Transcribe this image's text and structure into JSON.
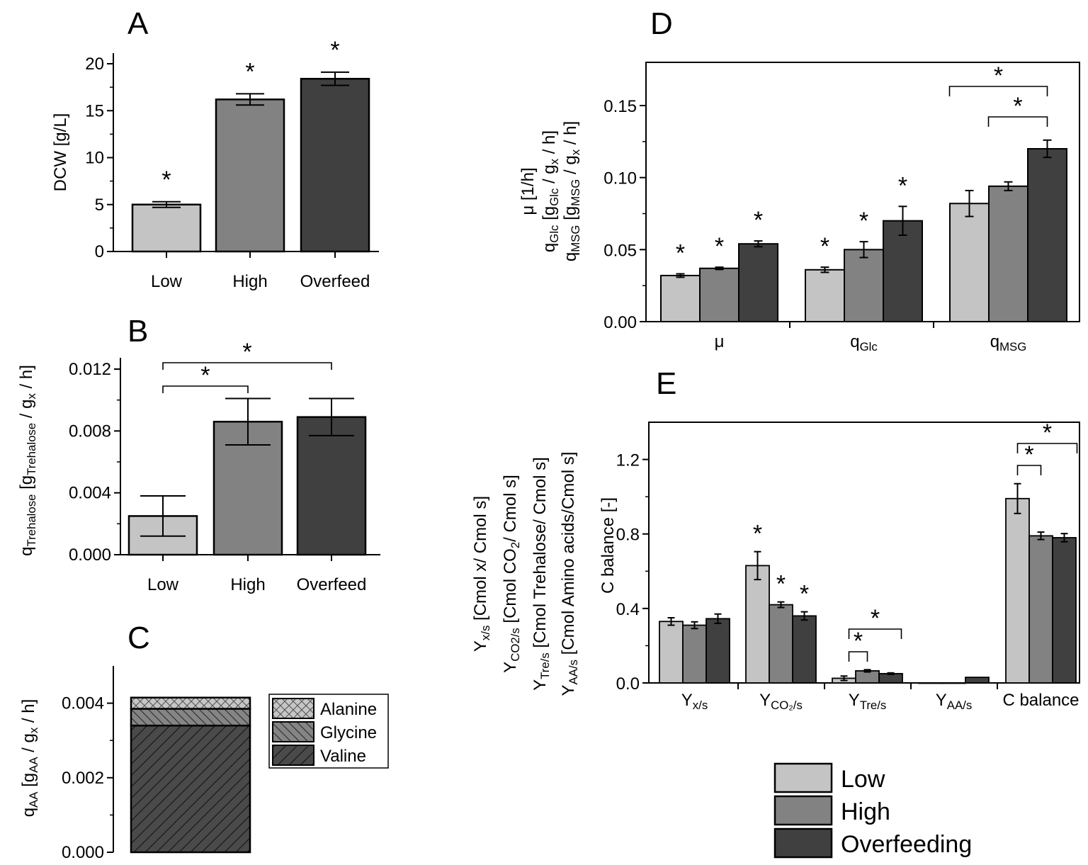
{
  "colors": {
    "low": "#c4c4c4",
    "high": "#828282",
    "over": "#404040"
  },
  "chart_data": [
    {
      "id": "A",
      "type": "bar",
      "panel_label": "A",
      "categories": [
        "Low",
        "High",
        "Overfeed"
      ],
      "values": [
        5.0,
        16.2,
        18.4
      ],
      "errors": [
        0.3,
        0.6,
        0.7
      ],
      "ylabel": "DCW [g/L]",
      "ylim": [
        0,
        20
      ],
      "yticks": [
        0,
        5,
        10,
        15,
        20
      ],
      "ytick_labels": [
        "0",
        "5",
        "10",
        "15",
        "20"
      ],
      "stars": [
        "*",
        "*",
        "*"
      ]
    },
    {
      "id": "B",
      "type": "bar",
      "panel_label": "B",
      "categories": [
        "Low",
        "High",
        "Overfeed"
      ],
      "values": [
        0.0025,
        0.0086,
        0.0089
      ],
      "errors": [
        0.0013,
        0.0015,
        0.0012
      ],
      "ylabel": {
        "main": "q",
        "sub1": "Trehalose",
        "mid1": " [g",
        "sub2": "Trehalose",
        "mid2": " / g",
        "sub3": "x",
        "end": " / h]"
      },
      "ylim": [
        0,
        0.012
      ],
      "yticks": [
        0,
        0.004,
        0.008,
        0.012
      ],
      "ytick_labels": [
        "0.000",
        "0.004",
        "0.008",
        "0.012"
      ],
      "brackets": [
        {
          "from": 0,
          "to": 1,
          "label": "*"
        },
        {
          "from": 0,
          "to": 2,
          "label": "*"
        }
      ]
    },
    {
      "id": "C",
      "type": "bar",
      "stacked": true,
      "panel_label": "C",
      "ylabel": {
        "main": "q",
        "sub1": "AA",
        "mid1": " [g",
        "sub2": "AA",
        "mid2": " / g",
        "sub3": "x",
        "end": " / h]"
      },
      "ylim": [
        0,
        0.005
      ],
      "yticks": [
        0,
        0.002,
        0.004
      ],
      "ytick_labels": [
        "0.000",
        "0.002",
        "0.004"
      ],
      "series": [
        {
          "name": "Valine",
          "value": 0.0034
        },
        {
          "name": "Glycine",
          "value": 0.00045
        },
        {
          "name": "Alanine",
          "value": 0.0003
        }
      ],
      "legend": [
        "Alanine",
        "Glycine",
        "Valine"
      ]
    },
    {
      "id": "D",
      "type": "bar",
      "panel_label": "D",
      "categories": [
        {
          "main": "μ",
          "sub": ""
        },
        {
          "main": "q",
          "sub": "Glc"
        },
        {
          "main": "q",
          "sub": "MSG"
        }
      ],
      "series": [
        {
          "name": "Low",
          "values": [
            0.032,
            0.036,
            0.082
          ],
          "errors": [
            0.0012,
            0.0018,
            0.009
          ]
        },
        {
          "name": "High",
          "values": [
            0.037,
            0.05,
            0.094
          ],
          "errors": [
            0.0008,
            0.0055,
            0.003
          ]
        },
        {
          "name": "Overfeeding",
          "values": [
            0.054,
            0.07,
            0.12
          ],
          "errors": [
            0.002,
            0.01,
            0.006
          ]
        }
      ],
      "ylabel_lines": [
        {
          "main": "μ [1/h]",
          "subs": []
        },
        {
          "parts": [
            [
              "q",
              ""
            ],
            [
              "Glc",
              "sub"
            ],
            [
              " [g",
              ""
            ],
            [
              "Glc",
              "sub"
            ],
            [
              " / g",
              ""
            ],
            [
              "x",
              "sub"
            ],
            [
              " / h]",
              ""
            ]
          ]
        },
        {
          "parts": [
            [
              "q",
              ""
            ],
            [
              "MSG",
              "sub"
            ],
            [
              " [g",
              ""
            ],
            [
              "MSG",
              "sub"
            ],
            [
              " / g",
              ""
            ],
            [
              "x",
              "sub"
            ],
            [
              " / h]",
              ""
            ]
          ]
        }
      ],
      "ylim": [
        0,
        0.18
      ],
      "yticks": [
        0,
        0.05,
        0.1,
        0.15
      ],
      "ytick_labels": [
        "0.00",
        "0.05",
        "0.10",
        "0.15"
      ],
      "stars_groups": [
        0,
        1
      ],
      "brackets": [
        {
          "group": 2,
          "from": 1,
          "to": 2,
          "label": "*"
        },
        {
          "group": 2,
          "from": 0,
          "to": 2,
          "label": "*"
        }
      ]
    },
    {
      "id": "E",
      "type": "bar",
      "panel_label": "E",
      "categories": [
        {
          "main": "Y",
          "sub": "x/s"
        },
        {
          "main": "Y",
          "sub": "CO₂/s"
        },
        {
          "main": "Y",
          "sub": "Tre/s"
        },
        {
          "main": "Y",
          "sub": "AA/s"
        },
        {
          "main": "C balance",
          "sub": ""
        }
      ],
      "series": [
        {
          "name": "Low",
          "values": [
            0.33,
            0.63,
            0.025,
            0.0,
            0.99
          ],
          "errors": [
            0.02,
            0.075,
            0.012,
            0,
            0.08
          ]
        },
        {
          "name": "High",
          "values": [
            0.31,
            0.42,
            0.065,
            0.0,
            0.79
          ],
          "errors": [
            0.018,
            0.015,
            0.006,
            0,
            0.02
          ]
        },
        {
          "name": "Overfeeding",
          "values": [
            0.345,
            0.36,
            0.05,
            0.03,
            0.78
          ],
          "errors": [
            0.025,
            0.022,
            0.004,
            0,
            0.022
          ]
        }
      ],
      "ylabel_lines": [
        {
          "parts": [
            [
              "Y",
              ""
            ],
            [
              "x/s",
              "sub"
            ],
            [
              "  [Cmol x/ Cmol s]",
              ""
            ]
          ]
        },
        {
          "parts": [
            [
              "Y",
              ""
            ],
            [
              "CO2/s",
              "sub"
            ],
            [
              " [Cmol CO",
              ""
            ],
            [
              "2",
              "sub"
            ],
            [
              "/ Cmol s]",
              ""
            ]
          ]
        },
        {
          "parts": [
            [
              "Y",
              ""
            ],
            [
              "Tre/s",
              "sub"
            ],
            [
              " [Cmol Trehalose/ Cmol s]",
              ""
            ]
          ]
        },
        {
          "parts": [
            [
              "Y",
              ""
            ],
            [
              "AA/s",
              "sub"
            ],
            [
              " [Cmol Amino acids/Cmol s]",
              ""
            ]
          ]
        }
      ],
      "ylabel2": "C balance [-]",
      "ylim": [
        0,
        1.4
      ],
      "yticks": [
        0,
        0.4,
        0.8,
        1.2
      ],
      "ytick_labels": [
        "0.0",
        "0.4",
        "0.8",
        "1.2"
      ],
      "stars_groups": [
        1
      ],
      "brackets": [
        {
          "group": 2,
          "from": 0,
          "to": 1,
          "label": "*"
        },
        {
          "group": 2,
          "from": 0,
          "to": 2,
          "label": "*"
        },
        {
          "group": 4,
          "from": 0,
          "to": 1,
          "label": "*"
        },
        {
          "group": 4,
          "from": 0,
          "to": 2,
          "label": "*"
        }
      ]
    }
  ],
  "legend": {
    "items": [
      "Low",
      "High",
      "Overfeeding"
    ]
  }
}
